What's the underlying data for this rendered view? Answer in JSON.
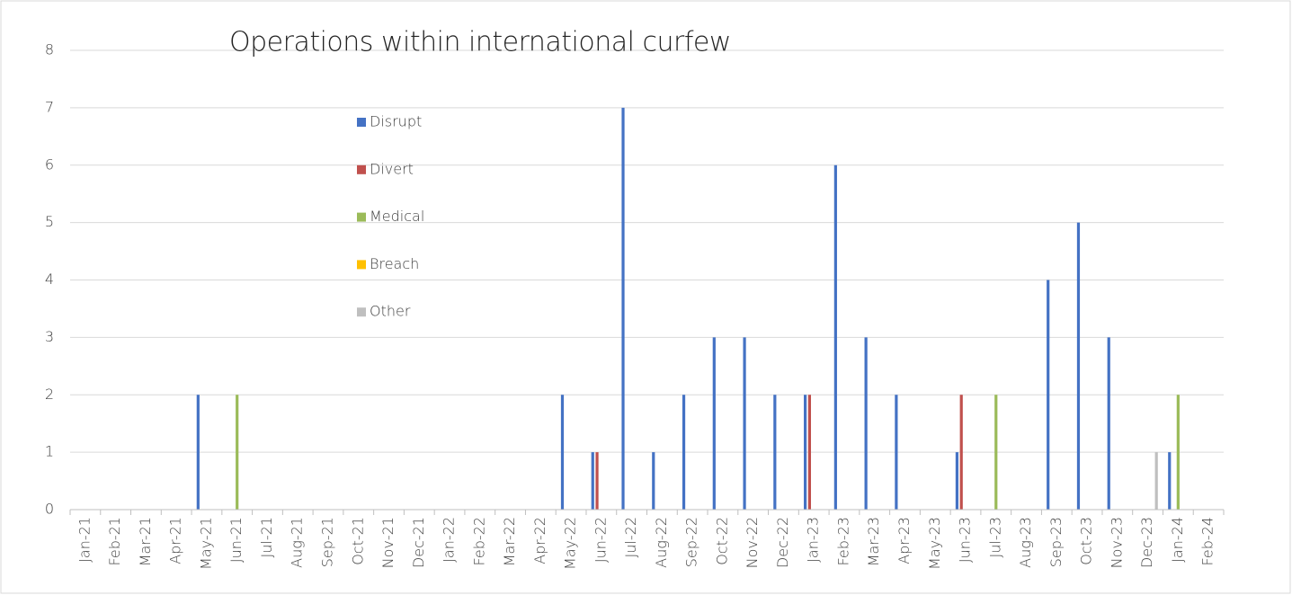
{
  "chart_data": {
    "type": "bar",
    "title": "Operations within international curfew",
    "categories": [
      "Jan-21",
      "Feb-21",
      "Mar-21",
      "Apr-21",
      "May-21",
      "Jun-21",
      "Jul-21",
      "Aug-21",
      "Sep-21",
      "Oct-21",
      "Nov-21",
      "Dec-21",
      "Jan-22",
      "Feb-22",
      "Mar-22",
      "Apr-22",
      "May-22",
      "Jun-22",
      "Jul-22",
      "Aug-22",
      "Sep-22",
      "Oct-22",
      "Nov-22",
      "Dec-22",
      "Jan-23",
      "Feb-23",
      "Mar-23",
      "Apr-23",
      "May-23",
      "Jun-23",
      "Jul-23",
      "Aug-23",
      "Sep-23",
      "Oct-23",
      "Nov-23",
      "Dec-23",
      "Jan-24",
      "Feb-24"
    ],
    "series": [
      {
        "name": "Disrupt",
        "color": "#4472c4",
        "values": [
          0,
          0,
          0,
          0,
          2,
          0,
          0,
          0,
          0,
          0,
          0,
          0,
          0,
          0,
          0,
          0,
          2,
          1,
          7,
          1,
          2,
          3,
          3,
          2,
          2,
          6,
          3,
          2,
          0,
          1,
          0,
          0,
          4,
          5,
          3,
          0,
          1,
          0
        ]
      },
      {
        "name": "Divert",
        "color": "#c0504d",
        "values": [
          0,
          0,
          0,
          0,
          0,
          0,
          0,
          0,
          0,
          0,
          0,
          0,
          0,
          0,
          0,
          0,
          0,
          1,
          0,
          0,
          0,
          0,
          0,
          0,
          2,
          0,
          0,
          0,
          0,
          2,
          0,
          0,
          0,
          0,
          0,
          0,
          0,
          0
        ]
      },
      {
        "name": "Medical",
        "color": "#9bbb59",
        "values": [
          0,
          0,
          0,
          0,
          0,
          2,
          0,
          0,
          0,
          0,
          0,
          0,
          0,
          0,
          0,
          0,
          0,
          0,
          0,
          0,
          0,
          0,
          0,
          0,
          0,
          0,
          0,
          0,
          0,
          0,
          2,
          0,
          0,
          0,
          0,
          0,
          2,
          0
        ]
      },
      {
        "name": "Breach",
        "color": "#ffc000",
        "values": [
          0,
          0,
          0,
          0,
          0,
          0,
          0,
          0,
          0,
          0,
          0,
          0,
          0,
          0,
          0,
          0,
          0,
          0,
          0,
          0,
          0,
          0,
          0,
          0,
          0,
          0,
          0,
          0,
          0,
          0,
          0,
          0,
          0,
          0,
          0,
          0,
          0,
          0
        ]
      },
      {
        "name": "Other",
        "color": "#bfbfbf",
        "values": [
          0,
          0,
          0,
          0,
          0,
          0,
          0,
          0,
          0,
          0,
          0,
          0,
          0,
          0,
          0,
          0,
          0,
          0,
          0,
          0,
          0,
          0,
          0,
          0,
          0,
          0,
          0,
          0,
          0,
          0,
          0,
          0,
          0,
          0,
          0,
          1,
          0,
          0
        ]
      }
    ],
    "ylim": [
      0,
      8
    ],
    "yticks": [
      0,
      1,
      2,
      3,
      4,
      5,
      6,
      7,
      8
    ],
    "grid": true,
    "legend": "upper-left"
  }
}
